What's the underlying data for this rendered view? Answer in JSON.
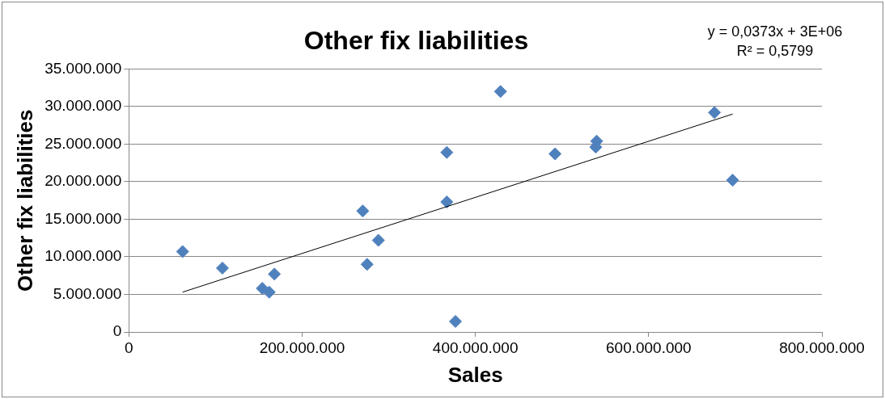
{
  "chart_data": {
    "type": "scatter",
    "title": "Other fix liabilities",
    "xlabel": "Sales",
    "ylabel": "Other fix liabilities",
    "series": [
      {
        "type": "scatter",
        "color": "#4f81bd",
        "marker": "diamond",
        "x": [
          62000000,
          108000000,
          154000000,
          162000000,
          168000000,
          270000000,
          275000000,
          288000000,
          367000000,
          367000000,
          377000000,
          429000000,
          492000000,
          539000000,
          540000000,
          676000000,
          697000000
        ],
        "values": [
          10700000,
          8500000,
          5800000,
          5300000,
          7700000,
          16100000,
          9000000,
          12200000,
          23900000,
          17300000,
          1400000,
          32000000,
          23700000,
          24600000,
          25400000,
          29200000,
          20200000
        ]
      },
      {
        "type": "line",
        "color": "#000000",
        "marker": "none",
        "line_style": "solid",
        "x": [
          62000000,
          697000000
        ],
        "values": [
          5300000,
          29000000
        ]
      }
    ],
    "xlim": [
      0,
      800000000
    ],
    "xticks": [
      0,
      {
        "value": 200000000,
        "label": "200.000.000"
      },
      {
        "value": 400000000,
        "label": "400.000.000"
      },
      {
        "value": 600000000,
        "label": "600.000.000"
      },
      {
        "value": 800000000,
        "label": "800.000.000"
      }
    ],
    "ylim": [
      0,
      35000000
    ],
    "yticks": [
      0,
      {
        "value": 5000000,
        "label": "5.000.000"
      },
      {
        "value": 10000000,
        "label": "10.000.000"
      },
      {
        "value": 15000000,
        "label": "15.000.000"
      },
      {
        "value": 20000000,
        "label": "20.000.000"
      },
      {
        "value": 25000000,
        "label": "25.000.000"
      },
      {
        "value": 30000000,
        "label": "30.000.000"
      },
      {
        "value": 35000000,
        "label": "35.000.000"
      }
    ],
    "grid": "y",
    "legend": false,
    "annotations": [
      "y = 0,0373x + 3E+06",
      "R² = 0,5799"
    ]
  }
}
